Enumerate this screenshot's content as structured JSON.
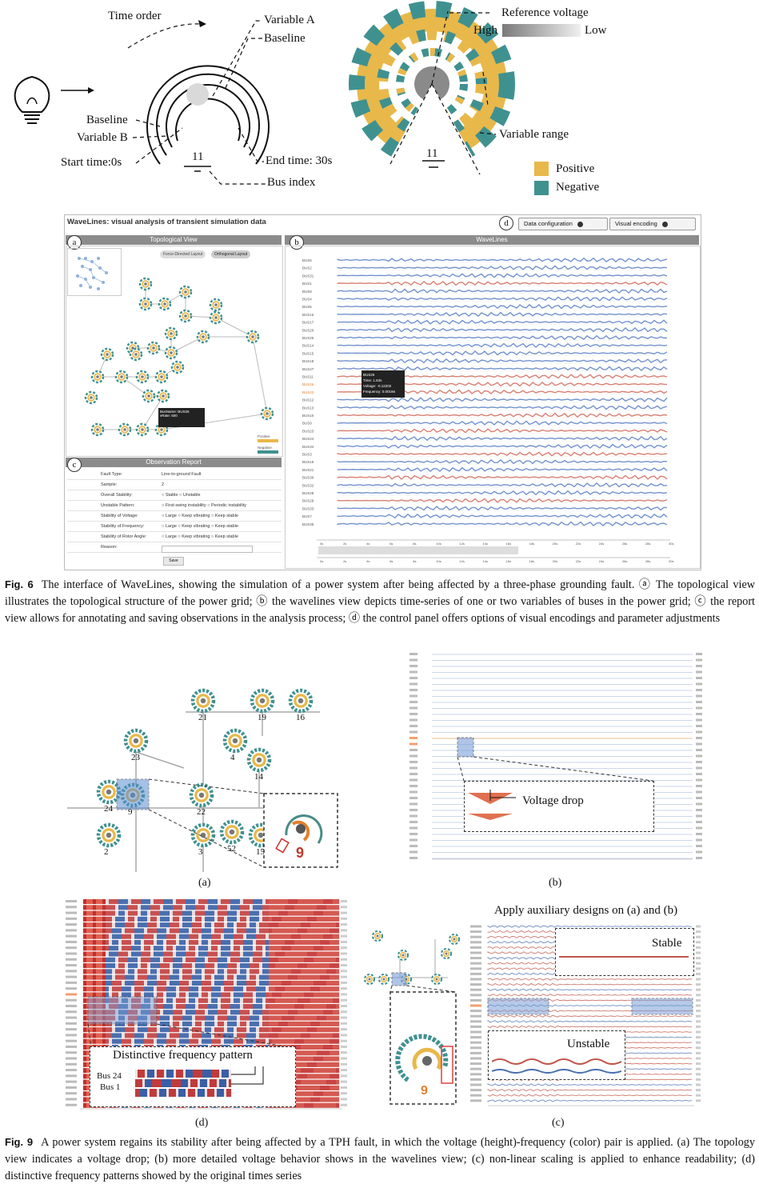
{
  "fig_top": {
    "labels": {
      "time_order": "Time order",
      "variable_a": "Variable A",
      "baseline_a": "Baseline",
      "baseline_b": "Baseline",
      "variable_b": "Variable B",
      "start_time": "Start time:0s",
      "end_time": "End time: 30s",
      "bus_index": "Bus index",
      "index_left": "11",
      "index_right": "11",
      "reference_voltage": "Reference voltage",
      "high": "High",
      "low": "Low",
      "variable_range": "Variable range",
      "positive": "Positive",
      "negative": "Negative"
    },
    "colors": {
      "positive": "#e8b84a",
      "negative": "#3f9190",
      "reference_gray": "#8a8a8a"
    }
  },
  "app": {
    "title": "WaveLines: visual analysis of transient simulation data",
    "buttons": {
      "data_config": "Data configuration",
      "visual_encoding": "Visual encoding"
    },
    "markers": {
      "a": "a",
      "b": "b",
      "c": "c",
      "d": "d"
    },
    "topo": {
      "title": "Topological View",
      "tab_force": "Force-Directed Layout",
      "tab_orth": "Orthogonal Layout",
      "tooltip_line1": "BusName: BUS26",
      "tooltip_line2": "vRate: 500",
      "legend_positive": "Positive",
      "legend_negative": "Negative"
    },
    "wavelines": {
      "title": "WaveLines",
      "tooltip": [
        "BUS26",
        "Time: 1.63s",
        "Voltage: -0.12202",
        "Frequency: 0.00166"
      ],
      "bus_labels": [
        "BUS6",
        "BUS2",
        "BUS31",
        "BUS1",
        "BUS8",
        "BUS4",
        "BUS5",
        "BUS16",
        "BUS17",
        "BUS20",
        "BUS25",
        "BUS14",
        "BUS15",
        "BUS18",
        "BUS27",
        "BUS11",
        "BUS26",
        "BUS22",
        "BUS12",
        "BUS13",
        "BUS10",
        "BUS9",
        "BUS23",
        "BUS24",
        "BUS34",
        "BUS3",
        "BUS19",
        "BUS21",
        "BUS30",
        "BUS32",
        "BUS28",
        "BUS29",
        "BUS33",
        "BUS7",
        "BUS35"
      ],
      "axis_ticks": [
        "0s",
        "2s",
        "4s",
        "6s",
        "8s",
        "10s",
        "12s",
        "14s",
        "16s",
        "18s",
        "20s",
        "22s",
        "24s",
        "26s",
        "28s",
        "30s"
      ]
    },
    "report": {
      "title": "Observation Report",
      "rows": [
        {
          "k": "Fault Type:",
          "v": "Line-to-ground Fault"
        },
        {
          "k": "Sample:",
          "v": "2"
        },
        {
          "k": "Overall Stability:",
          "v": "○ Stable  ○ Unstable"
        },
        {
          "k": "Unstable Pattern:",
          "v": "○ First-swing instability  ○ Periodic instability"
        },
        {
          "k": "Stability of Voltage:",
          "v": "○ Large  ○ Keep vibrating  ○ Keep stable"
        },
        {
          "k": "Stability of Frequency:",
          "v": "○ Large  ○ Keep vibrating  ○ Keep stable"
        },
        {
          "k": "Stability of Rotor Angle:",
          "v": "○ Large  ○ Keep vibrating  ○ Keep stable"
        },
        {
          "k": "Reason:",
          "v": ""
        }
      ],
      "save": "Save"
    }
  },
  "fig6_caption": {
    "label": "Fig. 6",
    "text": "The interface of WaveLines, showing the simulation of a power system after being affected by a three-phase grounding fault. ⓐ The topological view illustrates the topological structure of the power grid; ⓑ the wavelines view depicts time-series of one or two variables of buses in the power grid; ⓒ the report view allows for annotating and saving observations in the analysis process; ⓓ the control panel offers options of visual encodings and parameter adjustments"
  },
  "fig9": {
    "a": {
      "nodes": [
        "21",
        "19",
        "16",
        "4",
        "23",
        "14",
        "24",
        "9",
        "22",
        "2",
        "3",
        "52",
        "15"
      ],
      "zoom_label": "9",
      "sublabel": "(a)"
    },
    "b": {
      "callout": "Voltage drop",
      "sublabel": "(b)"
    },
    "c": {
      "header": "Apply auxiliary designs on (a) and (b)",
      "stable": "Stable",
      "unstable": "Unstable",
      "zoom_label": "9",
      "sublabel": "(c)"
    },
    "d": {
      "callout": "Distinctive frequency pattern",
      "bus_a": "Bus 24",
      "bus_b": "Bus 1",
      "sublabel": "(d)"
    }
  },
  "fig9_caption": {
    "label": "Fig. 9",
    "text": "A power system regains its stability after being affected by a TPH fault, in which the voltage (height)-frequency (color) pair is applied. (a) The topology view indicates a voltage drop; (b) more detailed voltage behavior shows in the wavelines view; (c) non-linear scaling is applied to enhance readability; (d) distinctive frequency patterns showed by the original times series"
  }
}
